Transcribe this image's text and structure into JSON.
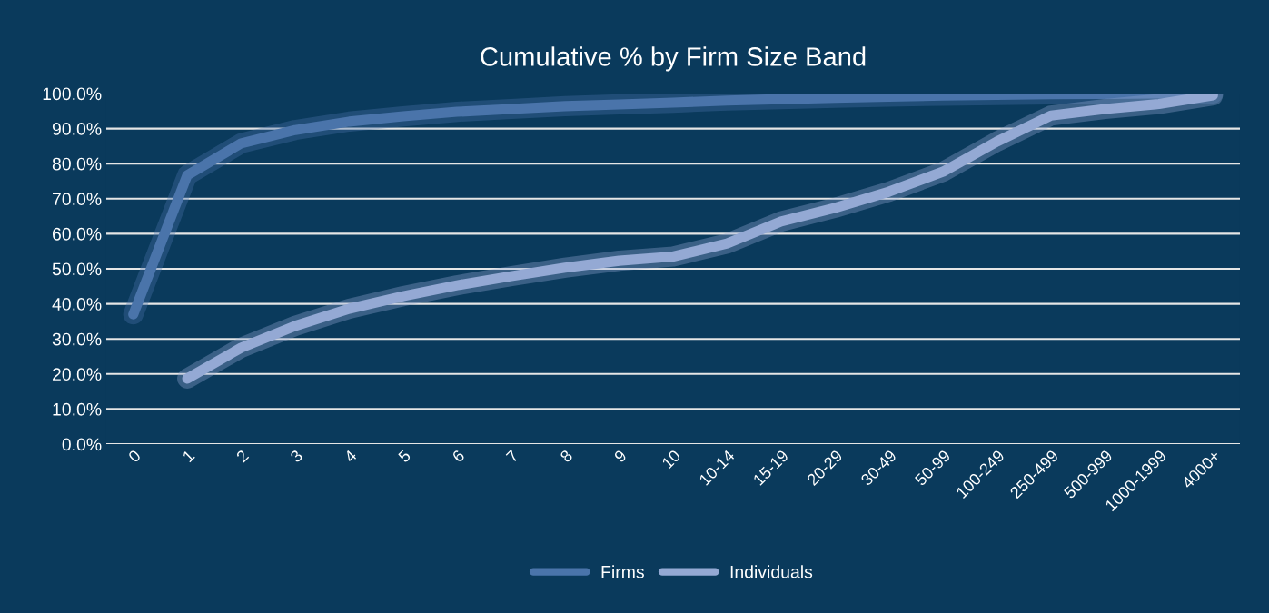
{
  "chart_data": {
    "type": "line",
    "title": "Cumulative % by Firm Size Band",
    "categories": [
      "0",
      "1",
      "2",
      "3",
      "4",
      "5",
      "6",
      "7",
      "8",
      "9",
      "10",
      "10-14",
      "15-19",
      "20-29",
      "30-49",
      "50-99",
      "100-249",
      "250-499",
      "500-999",
      "1000-1999",
      "4000+"
    ],
    "series": [
      {
        "name": "Firms",
        "color": "#4a74aa",
        "values": [
          37,
          76.7,
          85.8,
          89.6,
          92,
          93.5,
          94.8,
          95.6,
          96.4,
          96.9,
          97.4,
          98,
          98.4,
          98.8,
          99.1,
          99.4,
          99.6,
          99.8,
          99.9,
          100,
          100
        ]
      },
      {
        "name": "Individuals",
        "color": "#94a9d4",
        "values": [
          null,
          18.7,
          27.5,
          33.7,
          38.6,
          42.2,
          45.3,
          47.9,
          50.3,
          52.3,
          53.5,
          57.2,
          63.5,
          67.4,
          72,
          77.7,
          86.3,
          93.7,
          95.6,
          97,
          99.5
        ]
      }
    ],
    "ylim": [
      0,
      100
    ],
    "yticks": [
      {
        "value": 0,
        "label": "0.0%"
      },
      {
        "value": 10,
        "label": "10.0%"
      },
      {
        "value": 20,
        "label": "20.0%"
      },
      {
        "value": 30,
        "label": "30.0%"
      },
      {
        "value": 40,
        "label": "40.0%"
      },
      {
        "value": 50,
        "label": "50.0%"
      },
      {
        "value": 60,
        "label": "60.0%"
      },
      {
        "value": 70,
        "label": "70.0%"
      },
      {
        "value": 80,
        "label": "80.0%"
      },
      {
        "value": 90,
        "label": "90.0%"
      },
      {
        "value": 100,
        "label": "100.0%"
      }
    ],
    "grid": "y",
    "legend": "bottom",
    "marker": "none",
    "line_style": "solid"
  }
}
